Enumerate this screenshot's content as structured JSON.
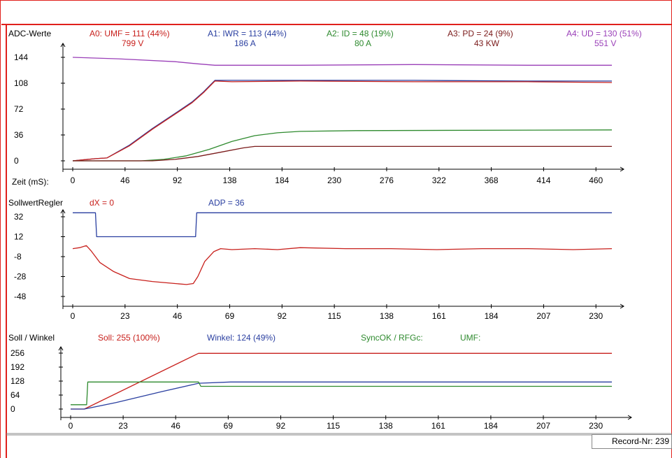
{
  "record_label": "Record-Nr: 239",
  "colors": {
    "frame": "#e0201c",
    "axis": "#000000",
    "a0": "#c8201c",
    "a1": "#2a3fa0",
    "a2": "#2e8a2e",
    "a3": "#7a1a1a",
    "a4": "#9a3fb8"
  },
  "chart_data": [
    {
      "type": "line",
      "title": "ADC-Werte",
      "xlabel": "Zeit (mS):",
      "x_ticks": [
        "0",
        "46",
        "92",
        "138",
        "184",
        "230",
        "276",
        "322",
        "368",
        "414",
        "460"
      ],
      "y_ticks": [
        "144",
        "108",
        "72",
        "36",
        "0"
      ],
      "xlim": [
        0,
        474
      ],
      "ylim": [
        0,
        144
      ],
      "legend": [
        {
          "label": "A0: UMF = 111 (44%)",
          "value": "799 V",
          "color": "#c8201c"
        },
        {
          "label": "A1: IWR = 113 (44%)",
          "value": "186 A",
          "color": "#2a3fa0"
        },
        {
          "label": "A2: ID  = 48 (19%)",
          "value": "80 A",
          "color": "#2e8a2e"
        },
        {
          "label": "A3: PD  = 24 (9%)",
          "value": "43 KW",
          "color": "#7a1a1a"
        },
        {
          "label": "A4: UD  = 130 (51%)",
          "value": "551 V",
          "color": "#9a3fb8"
        }
      ],
      "series": [
        {
          "color": "#9a3fb8",
          "x": [
            0,
            40,
            90,
            110,
            125,
            140,
            200,
            300,
            400,
            474
          ],
          "y": [
            144,
            142,
            138,
            135,
            133,
            133,
            133,
            134,
            133,
            133
          ]
        },
        {
          "color": "#2a3fa0",
          "x": [
            0,
            20,
            30,
            50,
            70,
            92,
            105,
            115,
            125,
            140,
            200,
            300,
            400,
            474
          ],
          "y": [
            0,
            3,
            4,
            22,
            45,
            68,
            82,
            96,
            112,
            112,
            112,
            112,
            111,
            111
          ]
        },
        {
          "color": "#c8201c",
          "x": [
            0,
            20,
            30,
            50,
            70,
            92,
            105,
            115,
            125,
            140,
            200,
            300,
            400,
            474
          ],
          "y": [
            0,
            3,
            4,
            21,
            44,
            67,
            81,
            95,
            111,
            110,
            111,
            110,
            110,
            109
          ]
        },
        {
          "color": "#2e8a2e",
          "x": [
            0,
            60,
            80,
            100,
            120,
            140,
            160,
            180,
            200,
            250,
            474
          ],
          "y": [
            0,
            0,
            2,
            7,
            16,
            27,
            35,
            39,
            41,
            42,
            43
          ]
        },
        {
          "color": "#7a1a1a",
          "x": [
            0,
            70,
            90,
            110,
            130,
            150,
            160,
            474
          ],
          "y": [
            0,
            0,
            2,
            6,
            12,
            18,
            20,
            20
          ]
        }
      ]
    },
    {
      "type": "line",
      "title": "SollwertRegler",
      "x_ticks": [
        "0",
        "23",
        "46",
        "69",
        "92",
        "115",
        "138",
        "161",
        "184",
        "207",
        "230"
      ],
      "y_ticks": [
        "32",
        "12",
        "-8",
        "-28",
        "-48"
      ],
      "xlim": [
        0,
        237
      ],
      "ylim": [
        -48,
        32
      ],
      "legend": [
        {
          "label": "dX  = 0",
          "color": "#c8201c"
        },
        {
          "label": "ADP = 36",
          "color": "#2a3fa0"
        }
      ],
      "series": [
        {
          "color": "#2a3fa0",
          "x": [
            0,
            10,
            10.5,
            54,
            54.5,
            237
          ],
          "y": [
            36,
            36,
            12,
            12,
            36,
            36
          ]
        },
        {
          "color": "#c8201c",
          "x": [
            0,
            3,
            6,
            8,
            12,
            18,
            25,
            35,
            45,
            50,
            53,
            55,
            58,
            62,
            65,
            70,
            80,
            90,
            100,
            120,
            140,
            160,
            180,
            200,
            220,
            237
          ],
          "y": [
            0,
            1,
            3,
            -2,
            -14,
            -23,
            -30,
            -33,
            -35,
            -36,
            -35,
            -28,
            -13,
            -3,
            0,
            -1,
            0,
            -1,
            1,
            0,
            0,
            -1,
            0,
            0,
            -1,
            0
          ]
        }
      ]
    },
    {
      "type": "line",
      "title": "Soll / Winkel",
      "x_ticks": [
        "0",
        "23",
        "46",
        "69",
        "92",
        "115",
        "138",
        "161",
        "184",
        "207",
        "230"
      ],
      "y_ticks": [
        "256",
        "192",
        "128",
        "64",
        "0"
      ],
      "xlim": [
        0,
        237
      ],
      "ylim": [
        0,
        256
      ],
      "legend": [
        {
          "label": "Soll: 255 (100%)",
          "color": "#c8201c"
        },
        {
          "label": "Winkel: 124 (49%)",
          "color": "#2a3fa0"
        },
        {
          "label": "SyncOK / RFGc:",
          "color": "#2e8a2e"
        },
        {
          "label": "UMF:",
          "color": "#2e8a2e"
        }
      ],
      "series": [
        {
          "color": "#c8201c",
          "x": [
            0,
            6,
            56,
            237
          ],
          "y": [
            0,
            0,
            255,
            255
          ]
        },
        {
          "color": "#2a3fa0",
          "x": [
            0,
            6,
            20,
            40,
            56,
            70,
            237
          ],
          "y": [
            0,
            0,
            30,
            80,
            118,
            124,
            124
          ]
        },
        {
          "color": "#2e8a2e",
          "x": [
            0,
            7,
            7.5,
            56,
            57,
            237
          ],
          "y": [
            20,
            20,
            124,
            124,
            104,
            104
          ]
        }
      ]
    }
  ]
}
